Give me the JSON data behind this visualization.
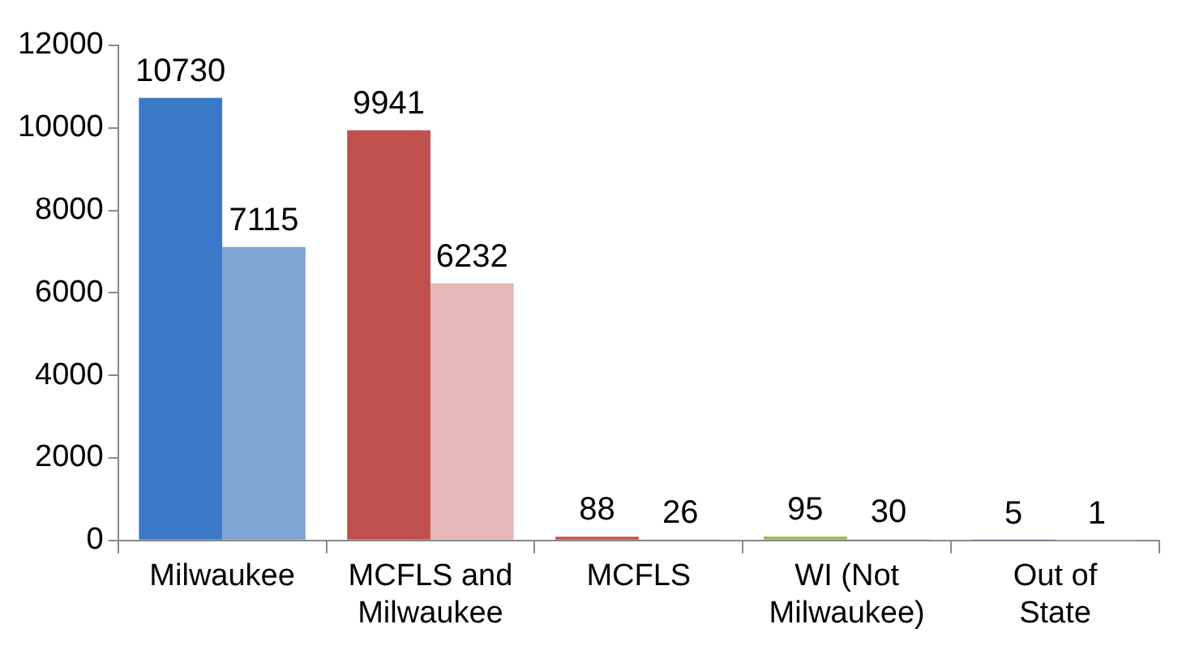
{
  "chart_data": {
    "type": "bar",
    "categories": [
      "Milwaukee",
      "MCFLS and Milwaukee",
      "MCFLS",
      "WI (Not Milwaukee)",
      "Out of State"
    ],
    "series": [
      {
        "colors": [
          "#3c78c8",
          "#c0504d",
          "#c0504d",
          "#9bbb59",
          "#4f81bd"
        ],
        "values": [
          10730,
          9941,
          88,
          95,
          5
        ]
      },
      {
        "colors": [
          "#7fa3d3",
          "#e6b9b8",
          "#e6b9b8",
          "#c3d69b",
          "#a7c0de"
        ],
        "values": [
          7115,
          6232,
          26,
          30,
          1
        ]
      }
    ],
    "ylim": [
      0,
      12000
    ],
    "yticks": [
      0,
      2000,
      4000,
      6000,
      8000,
      10000,
      12000
    ],
    "data_labels": true,
    "legend": false
  }
}
